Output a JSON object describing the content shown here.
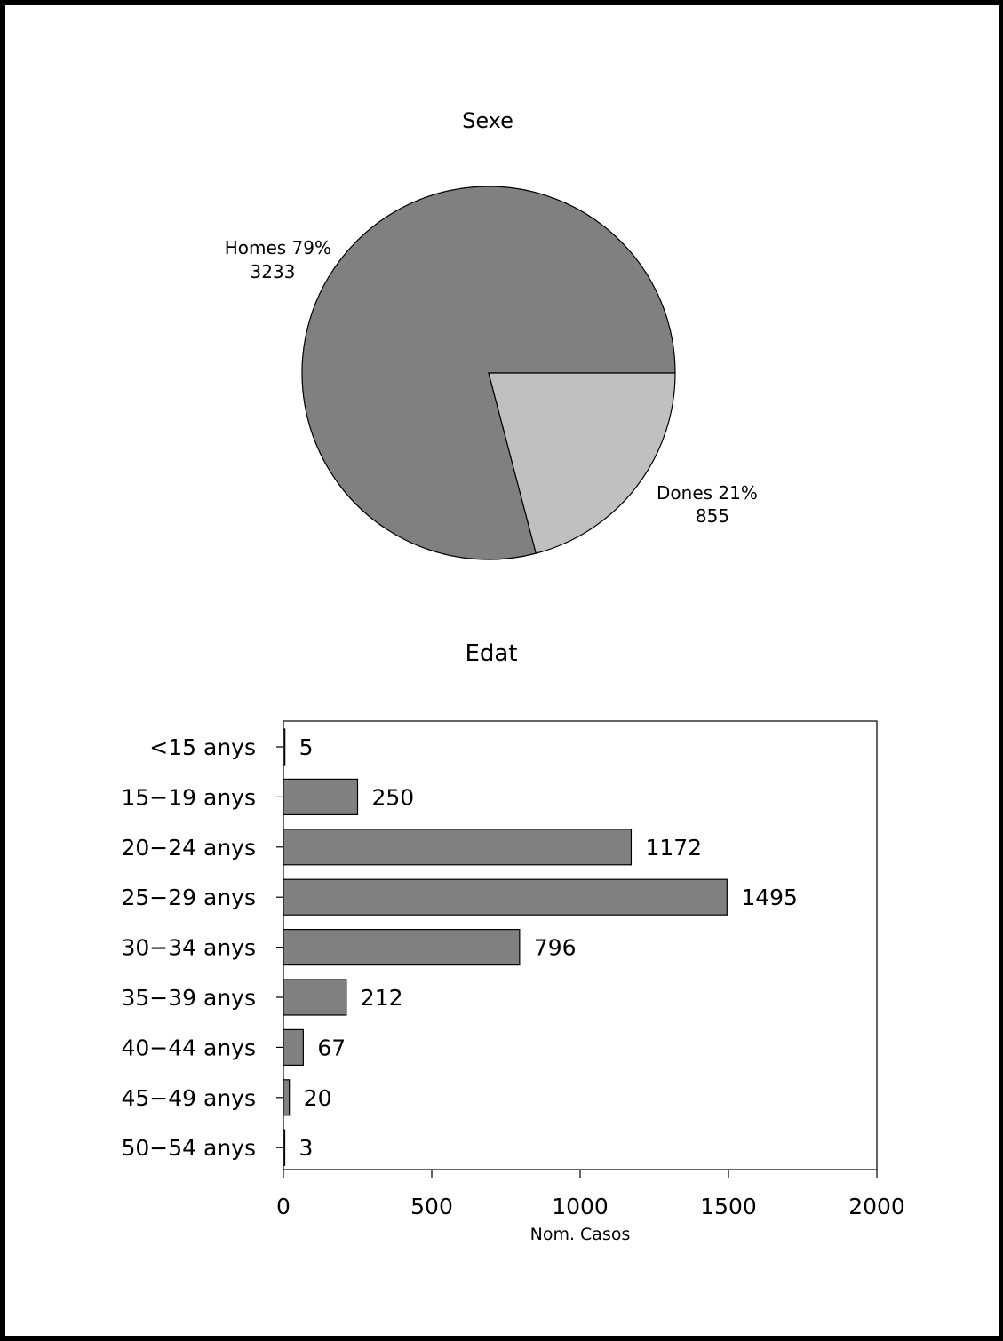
{
  "chart_data": [
    {
      "type": "pie",
      "title": "Sexe",
      "slices": [
        {
          "label": "Homes",
          "percent_label": "79%",
          "value": 3233,
          "value_label": "3233",
          "color": "#808080"
        },
        {
          "label": "Dones",
          "percent_label": "21%",
          "value": 855,
          "value_label": "855",
          "color": "#c0c0c0"
        }
      ]
    },
    {
      "type": "bar",
      "orientation": "horizontal",
      "title": "Edat",
      "xlabel": "Nom. Casos",
      "ylabel": "",
      "xlim": [
        0,
        2000
      ],
      "xticks": [
        0,
        500,
        1000,
        1500,
        2000
      ],
      "categories": [
        "<15 anys",
        "15−19 anys",
        "20−24 anys",
        "25−29 anys",
        "30−34 anys",
        "35−39 anys",
        "40−44 anys",
        "45−49 anys",
        "50−54 anys"
      ],
      "values": [
        5,
        250,
        1172,
        1495,
        796,
        212,
        67,
        20,
        3
      ],
      "bar_color": "#808080",
      "grid": false,
      "legend": "none"
    }
  ]
}
